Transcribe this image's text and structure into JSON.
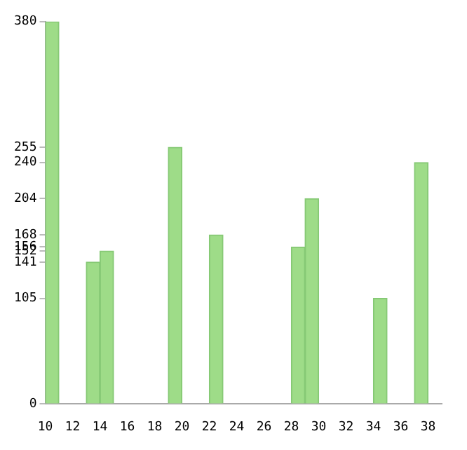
{
  "chart_data": {
    "type": "histogram",
    "bins": [
      10,
      11,
      12,
      13,
      14,
      15,
      16,
      17,
      18,
      19,
      20,
      21,
      22,
      23,
      24,
      25,
      26,
      27,
      28,
      29,
      30,
      31,
      32,
      33,
      34,
      35,
      36,
      37,
      38,
      39
    ],
    "values": [
      380,
      0,
      0,
      141,
      152,
      0,
      0,
      0,
      0,
      255,
      0,
      0,
      168,
      0,
      0,
      0,
      0,
      0,
      156,
      204,
      0,
      0,
      0,
      0,
      105,
      0,
      0,
      240,
      0
    ],
    "color": "#9edc88",
    "xlim": [
      10,
      39
    ],
    "xticks": [
      10,
      12,
      14,
      16,
      18,
      20,
      22,
      24,
      26,
      28,
      30,
      32,
      34,
      36,
      38
    ],
    "ylim": [
      0,
      380
    ],
    "yticks": [
      0,
      105,
      141,
      152,
      156,
      168,
      204,
      240,
      255,
      380
    ],
    "grid": false,
    "legend": false
  }
}
